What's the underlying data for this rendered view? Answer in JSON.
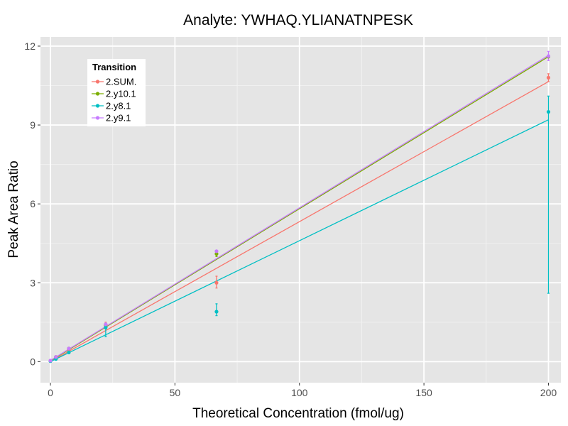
{
  "chart_data": {
    "type": "scatter",
    "title": "Analyte: YWHAQ.YLIANATNPESK",
    "xlabel": "Theoretical Concentration (fmol/ug)",
    "ylabel": "Peak Area Ratio",
    "xlim": [
      -4,
      205
    ],
    "ylim": [
      -0.8,
      12.35
    ],
    "x_ticks": [
      0,
      50,
      100,
      150,
      200
    ],
    "y_ticks": [
      0,
      3,
      6,
      9,
      12
    ],
    "grid": true,
    "legend_title": "Transition",
    "legend_position": "top-left",
    "series": [
      {
        "name": "2.SUM.",
        "color": "#F8766D",
        "points": [
          {
            "x": 0,
            "y": 0.03
          },
          {
            "x": 2.2,
            "y": 0.16
          },
          {
            "x": 7.4,
            "y": 0.47
          },
          {
            "x": 22.2,
            "y": 1.38,
            "err": [
              1.25,
              1.5
            ]
          },
          {
            "x": 66.7,
            "y": 3.0,
            "err": [
              2.8,
              3.25
            ]
          },
          {
            "x": 200,
            "y": 10.8,
            "err": [
              10.65,
              10.95
            ]
          }
        ],
        "fit": [
          [
            0,
            0.0
          ],
          [
            200,
            10.65
          ]
        ]
      },
      {
        "name": "2.y10.1",
        "color": "#7CAE00",
        "points": [
          {
            "x": 0,
            "y": 0.03
          },
          {
            "x": 2.2,
            "y": 0.18
          },
          {
            "x": 7.4,
            "y": 0.5
          },
          {
            "x": 22.2,
            "y": 1.4
          },
          {
            "x": 66.7,
            "y": 4.1,
            "err": [
              4.0,
              4.2
            ]
          },
          {
            "x": 200,
            "y": 11.6
          }
        ],
        "fit": [
          [
            0,
            0.03
          ],
          [
            200,
            11.6
          ]
        ]
      },
      {
        "name": "2.y8.1",
        "color": "#00BFC4",
        "points": [
          {
            "x": 0,
            "y": 0.02
          },
          {
            "x": 2.2,
            "y": 0.1
          },
          {
            "x": 7.4,
            "y": 0.35
          },
          {
            "x": 22.2,
            "y": 1.3,
            "err": [
              0.95,
              1.45
            ]
          },
          {
            "x": 66.7,
            "y": 1.9,
            "err": [
              1.75,
              2.2
            ]
          },
          {
            "x": 200,
            "y": 9.5,
            "err": [
              2.6,
              10.1
            ]
          }
        ],
        "fit": [
          [
            0,
            0.0
          ],
          [
            200,
            9.2
          ]
        ]
      },
      {
        "name": "2.y9.1",
        "color": "#C77CFF",
        "points": [
          {
            "x": 0,
            "y": 0.04
          },
          {
            "x": 2.2,
            "y": 0.18
          },
          {
            "x": 7.4,
            "y": 0.5
          },
          {
            "x": 22.2,
            "y": 1.42
          },
          {
            "x": 66.7,
            "y": 4.2
          },
          {
            "x": 200,
            "y": 11.62,
            "err": [
              11.45,
              11.8
            ]
          }
        ],
        "fit": [
          [
            0,
            0.05
          ],
          [
            200,
            11.65
          ]
        ]
      }
    ]
  }
}
